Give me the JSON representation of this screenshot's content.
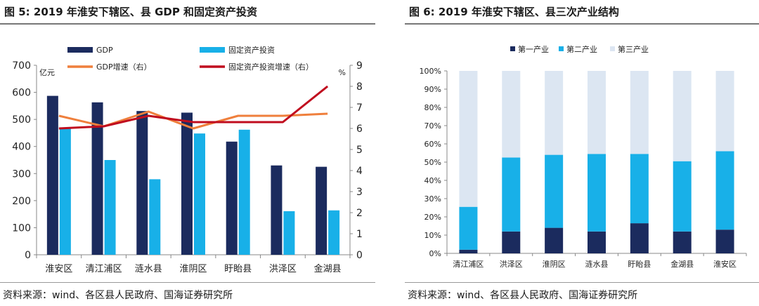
{
  "figures": {
    "left": {
      "title": "图 5:  2019 年淮安下辖区、县 GDP 和固定资产投资",
      "source": "资料来源：wind、各区县人民政府、国海证券研究所"
    },
    "right": {
      "title": "图 6:  2019 年淮安下辖区、县三次产业结构",
      "source": "资料来源：wind、各区县人民政府、国海证券研究所"
    }
  },
  "colors": {
    "navy": "#1b2b5e",
    "cyan": "#18b0e8",
    "orange": "#ef7f3c",
    "red": "#c00c1e",
    "light": "#dce6f2"
  },
  "chart_data": [
    {
      "type": "bar",
      "categories": [
        "淮安区",
        "清江浦区",
        "涟水县",
        "淮阴区",
        "盱眙县",
        "洪泽区",
        "金湖县"
      ],
      "series": [
        {
          "name": "GDP",
          "kind": "bar",
          "axis": "left",
          "values": [
            587,
            563,
            531,
            525,
            418,
            330,
            325
          ]
        },
        {
          "name": "固定资产投资",
          "kind": "bar",
          "axis": "left",
          "values": [
            467,
            350,
            279,
            448,
            462,
            161,
            164
          ]
        },
        {
          "name": "GDP增速（右）",
          "kind": "line",
          "axis": "right",
          "values": [
            6.6,
            6.1,
            6.8,
            6.0,
            6.6,
            6.6,
            6.7
          ]
        },
        {
          "name": "固定资产投资增速（右）",
          "kind": "line",
          "axis": "right",
          "values": [
            6.0,
            6.1,
            6.6,
            6.3,
            6.3,
            6.3,
            8.0
          ]
        }
      ],
      "ylabel": "亿元",
      "y2label": "%",
      "ylim": [
        0,
        700
      ],
      "yticks": [
        0,
        100,
        200,
        300,
        400,
        500,
        600,
        700
      ],
      "y2lim": [
        0,
        9
      ],
      "y2ticks": [
        0,
        1,
        2,
        3,
        4,
        5,
        6,
        7,
        8,
        9
      ],
      "grid": false,
      "legend": "top"
    },
    {
      "type": "bar",
      "stacked": true,
      "categories": [
        "清江浦区",
        "洪泽区",
        "淮阴区",
        "涟水县",
        "盱眙县",
        "金湖县",
        "淮安区"
      ],
      "series": [
        {
          "name": "第一产业",
          "values": [
            2,
            12,
            14,
            12,
            16.5,
            12,
            13
          ]
        },
        {
          "name": "第二产业",
          "values": [
            23.5,
            40.5,
            40,
            42.5,
            38,
            38.5,
            43
          ]
        },
        {
          "name": "第三产业",
          "values": [
            74.5,
            47.5,
            46,
            45.5,
            45.5,
            49.5,
            44
          ]
        }
      ],
      "ylim": [
        0,
        100
      ],
      "yticks": [
        "0%",
        "10%",
        "20%",
        "30%",
        "40%",
        "50%",
        "60%",
        "70%",
        "80%",
        "90%",
        "100%"
      ],
      "grid": false,
      "legend": "top"
    }
  ]
}
